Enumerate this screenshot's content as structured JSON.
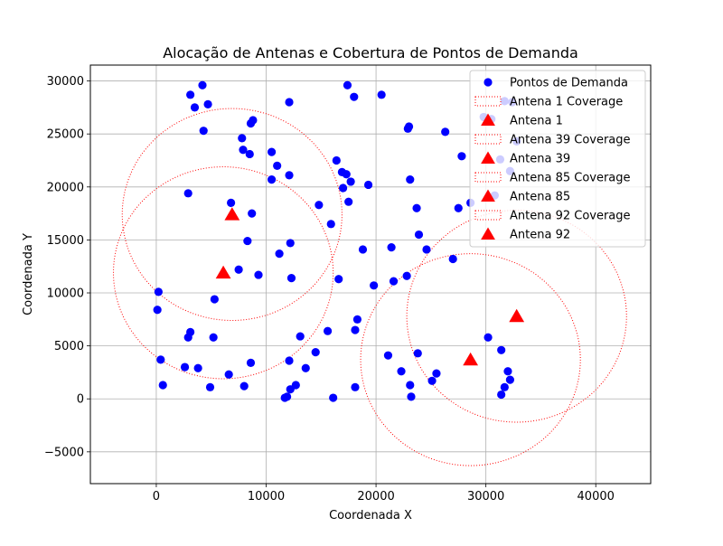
{
  "chart_data": {
    "type": "scatter",
    "title": "Alocação de Antenas e Cobertura de Pontos de Demanda",
    "xlabel": "Coordenada X",
    "ylabel": "Coordenada Y",
    "xlim": [
      -6000,
      45000
    ],
    "ylim": [
      -8000,
      31500
    ],
    "xticks": [
      0,
      10000,
      20000,
      30000,
      40000
    ],
    "xtick_labels": [
      "0",
      "10000",
      "20000",
      "30000",
      "40000"
    ],
    "yticks": [
      -5000,
      0,
      5000,
      10000,
      15000,
      20000,
      25000,
      30000
    ],
    "ytick_labels": [
      "−5000",
      "0",
      "5000",
      "10000",
      "15000",
      "20000",
      "25000",
      "30000"
    ],
    "grid": true,
    "legend_position": "upper-right",
    "colors": {
      "points": "#0000ff",
      "antenna": "#ff0000",
      "coverage": "#ff0000"
    },
    "demand_points": {
      "name": "Pontos de Demanda",
      "points": [
        [
          3100,
          28700
        ],
        [
          4200,
          29600
        ],
        [
          3500,
          27500
        ],
        [
          4700,
          27800
        ],
        [
          4300,
          25300
        ],
        [
          7800,
          24600
        ],
        [
          8600,
          26000
        ],
        [
          8800,
          26300
        ],
        [
          12100,
          28000
        ],
        [
          7900,
          23500
        ],
        [
          8500,
          23100
        ],
        [
          10500,
          23300
        ],
        [
          11000,
          22000
        ],
        [
          12100,
          21100
        ],
        [
          10500,
          20700
        ],
        [
          2900,
          19400
        ],
        [
          6800,
          18500
        ],
        [
          8700,
          17500
        ],
        [
          8300,
          14900
        ],
        [
          12200,
          14700
        ],
        [
          11200,
          13700
        ],
        [
          7500,
          12200
        ],
        [
          9300,
          11700
        ],
        [
          12300,
          11400
        ],
        [
          200,
          10100
        ],
        [
          100,
          8400
        ],
        [
          5300,
          9400
        ],
        [
          3100,
          6300
        ],
        [
          2900,
          5800
        ],
        [
          5200,
          5800
        ],
        [
          400,
          3700
        ],
        [
          2600,
          3000
        ],
        [
          3800,
          2900
        ],
        [
          8600,
          3400
        ],
        [
          6600,
          2300
        ],
        [
          600,
          1300
        ],
        [
          4900,
          1100
        ],
        [
          8000,
          1200
        ],
        [
          12100,
          3600
        ],
        [
          13100,
          5900
        ],
        [
          13600,
          2900
        ],
        [
          14500,
          4400
        ],
        [
          12700,
          1300
        ],
        [
          12200,
          900
        ],
        [
          11900,
          200
        ],
        [
          11700,
          100
        ],
        [
          15600,
          6400
        ],
        [
          16100,
          100
        ],
        [
          14800,
          18300
        ],
        [
          15900,
          16500
        ],
        [
          16400,
          22500
        ],
        [
          16900,
          21400
        ],
        [
          17300,
          21200
        ],
        [
          17700,
          20500
        ],
        [
          17000,
          19900
        ],
        [
          17500,
          18600
        ],
        [
          19300,
          20200
        ],
        [
          17400,
          29600
        ],
        [
          18000,
          28500
        ],
        [
          20500,
          28700
        ],
        [
          16600,
          11300
        ],
        [
          18800,
          14100
        ],
        [
          18300,
          7500
        ],
        [
          18100,
          6500
        ],
        [
          19800,
          10700
        ],
        [
          18100,
          1100
        ],
        [
          21400,
          14300
        ],
        [
          21600,
          11100
        ],
        [
          22800,
          11600
        ],
        [
          23100,
          20700
        ],
        [
          22900,
          25500
        ],
        [
          23000,
          25700
        ],
        [
          23700,
          18000
        ],
        [
          23900,
          15500
        ],
        [
          24600,
          14100
        ],
        [
          23800,
          4300
        ],
        [
          22300,
          2600
        ],
        [
          23100,
          1300
        ],
        [
          23200,
          200
        ],
        [
          21100,
          4100
        ],
        [
          25100,
          1700
        ],
        [
          25500,
          2400
        ],
        [
          26300,
          25200
        ],
        [
          27800,
          22900
        ],
        [
          27500,
          18000
        ],
        [
          28600,
          18500
        ],
        [
          27000,
          13200
        ],
        [
          30200,
          5800
        ],
        [
          31400,
          4600
        ],
        [
          32000,
          2600
        ],
        [
          32200,
          1800
        ],
        [
          31700,
          1100
        ],
        [
          31400,
          400
        ],
        [
          29800,
          26600
        ],
        [
          30500,
          26400
        ],
        [
          31700,
          28100
        ],
        [
          32400,
          28000
        ],
        [
          31300,
          22600
        ],
        [
          32200,
          21500
        ],
        [
          30800,
          19200
        ],
        [
          32800,
          24300
        ]
      ]
    },
    "antennas": [
      {
        "name": "Antena 1",
        "coverage_name": "Antena 1 Coverage",
        "x": 6900,
        "y": 17400,
        "radius": 10000
      },
      {
        "name": "Antena 39",
        "coverage_name": "Antena 39 Coverage",
        "x": 6100,
        "y": 11900,
        "radius": 10000
      },
      {
        "name": "Antena 85",
        "coverage_name": "Antena 85 Coverage",
        "x": 28600,
        "y": 3700,
        "radius": 10000
      },
      {
        "name": "Antena 92",
        "coverage_name": "Antena 92 Coverage",
        "x": 32800,
        "y": 7800,
        "radius": 10000
      }
    ],
    "legend_entries": [
      "Pontos de Demanda",
      "Antena 1 Coverage",
      "Antena 1",
      "Antena 39 Coverage",
      "Antena 39",
      "Antena 85 Coverage",
      "Antena 85",
      "Antena 92 Coverage",
      "Antena 92"
    ]
  }
}
